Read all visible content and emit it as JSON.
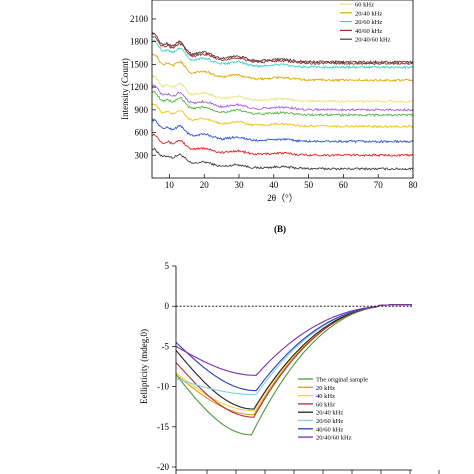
{
  "chart_data": [
    {
      "type": "line",
      "xlabel": "2θ（°）",
      "ylabel": "Intensity (Count)",
      "xlim": [
        5,
        80
      ],
      "ylim": [
        0,
        2350
      ],
      "xticks": [
        10,
        20,
        30,
        40,
        50,
        60,
        70,
        80
      ],
      "yticks": [
        300,
        600,
        900,
        1200,
        1500,
        1800,
        2100
      ],
      "legend_position": "top-right",
      "series": [
        {
          "name": "",
          "color": "#404040",
          "baseline": 120,
          "noise": 14
        },
        {
          "name": "",
          "color": "#ee2222",
          "baseline": 300,
          "noise": 14
        },
        {
          "name": "",
          "color": "#2d57d6",
          "baseline": 480,
          "noise": 14
        },
        {
          "name": "",
          "color": "#f4c20d",
          "baseline": 680,
          "noise": 14
        },
        {
          "name": "",
          "color": "#55b545",
          "baseline": 830,
          "noise": 14
        },
        {
          "name": "",
          "color": "#a85ed8",
          "baseline": 900,
          "noise": 14
        },
        {
          "name": "60 kHz",
          "color": "#e8e37a",
          "baseline": 1010,
          "noise": 14
        },
        {
          "name": "20/40 kHz",
          "color": "#e0a800",
          "baseline": 1290,
          "noise": 14
        },
        {
          "name": "20/60 kHz",
          "color": "#3dd6c3",
          "baseline": 1460,
          "noise": 14
        },
        {
          "name": "40/60 kHz",
          "color": "#9a2f2f",
          "baseline": 1510,
          "noise": 14
        },
        {
          "name": "20/40/60 kHz",
          "color": "#5a3535",
          "baseline": 1530,
          "noise": 14
        }
      ],
      "panel_label": "(B)"
    },
    {
      "type": "line",
      "ylabel": "Eellipticity (mdeg,0)",
      "ylim": [
        -20,
        5
      ],
      "yticks": [
        -20,
        -15,
        -10,
        -5,
        0,
        5
      ],
      "reference_line": 0,
      "legend_position": "lower-right",
      "series": [
        {
          "name": "The original sample",
          "color": "#4e9a3a",
          "min_value": -16.0,
          "min_x": 0.32
        },
        {
          "name": "20 kHz",
          "color": "#d4a017",
          "min_value": -13.5,
          "min_x": 0.33
        },
        {
          "name": "40 kHz",
          "color": "#f2d14a",
          "min_value": -13.0,
          "min_x": 0.33
        },
        {
          "name": "60 kHz",
          "color": "#b03030",
          "min_value": -13.8,
          "min_x": 0.33
        },
        {
          "name": "20/40 kHz",
          "color": "#222222",
          "min_value": -12.8,
          "min_x": 0.33
        },
        {
          "name": "20/60 kHz",
          "color": "#7fd0ef",
          "min_value": -11.0,
          "min_x": 0.34
        },
        {
          "name": "40/60 kHz",
          "color": "#2a3fb8",
          "min_value": -10.5,
          "min_x": 0.34
        },
        {
          "name": "20/40/60 kHz",
          "color": "#7d2fa8",
          "min_value": -8.6,
          "min_x": 0.34
        }
      ]
    }
  ]
}
